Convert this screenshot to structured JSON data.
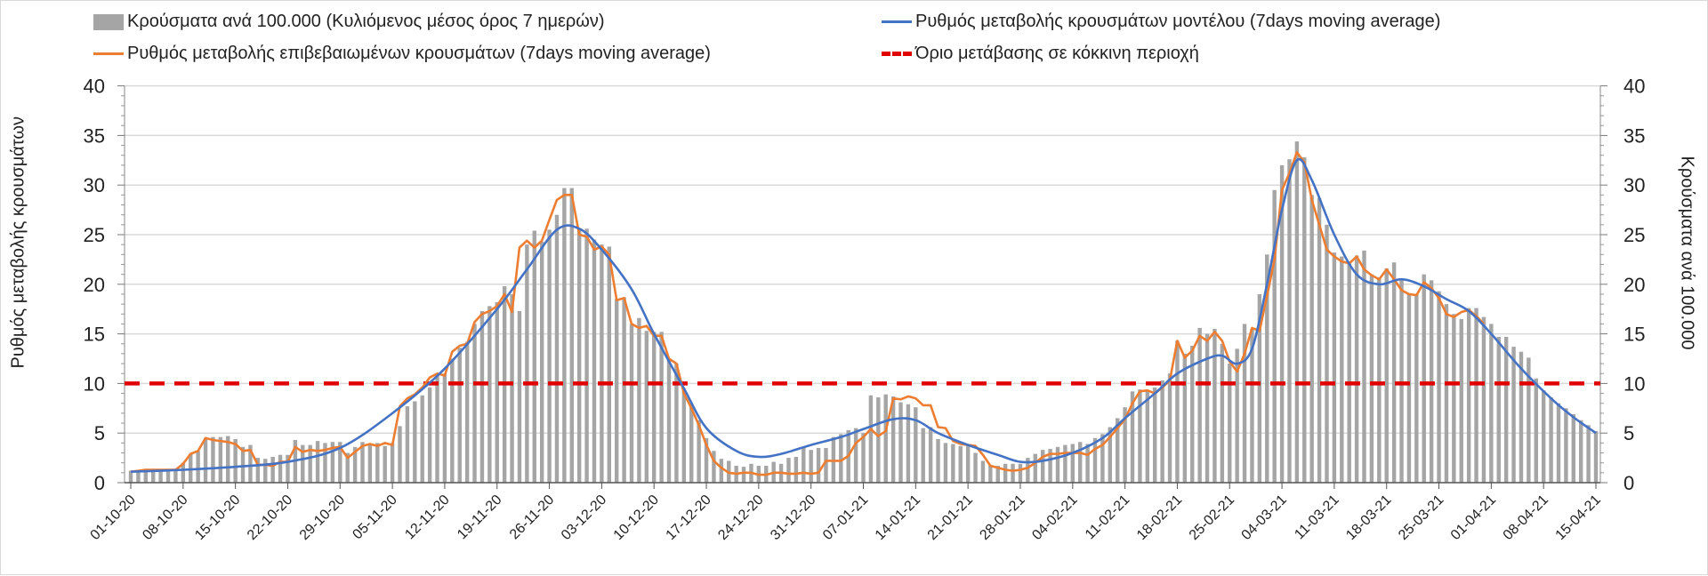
{
  "chart_data": {
    "type": "bar+line",
    "legend": {
      "bars": "Κρούσματα ανά 100.000 (Κυλιόμενος μέσος όρος 7 ημερών)",
      "model": "Ρυθμός μεταβολής κρουσμάτων μοντέλου (7days moving average)",
      "confirmed": "Ρυθμός μεταβολής επιβεβαιωμένων κρουσμάτων (7days moving average)",
      "threshold": "Όριο μετάβασης σε κόκκινη περιοχή"
    },
    "legend_position": "top",
    "ylabel_left": "Ρυθμός μεταβολής κρουσμάτων",
    "ylabel_right": "Κρούσματα ανά 100.000",
    "ylim": [
      0,
      40
    ],
    "yticks": [
      "0",
      "5",
      "10",
      "15",
      "20",
      "25",
      "30",
      "35",
      "40"
    ],
    "x_start": "01-10-20",
    "x_end": "15-04-21",
    "xtick_labels": [
      "01-10-20",
      "08-10-20",
      "15-10-20",
      "22-10-20",
      "29-10-20",
      "05-11-20",
      "12-11-20",
      "19-11-20",
      "26-11-20",
      "03-12-20",
      "10-12-20",
      "17-12-20",
      "24-12-20",
      "31-12-20",
      "07-01-21",
      "14-01-21",
      "21-01-21",
      "28-01-21",
      "04-02-21",
      "11-02-21",
      "18-02-21",
      "25-02-21",
      "04-03-21",
      "11-03-21",
      "18-03-21",
      "25-03-21",
      "01-04-21",
      "08-04-21",
      "15-04-21"
    ],
    "threshold": 10,
    "bars_daily": [
      1.2,
      1.3,
      1.4,
      1.4,
      1.3,
      1.3,
      1.4,
      2.0,
      2.9,
      3.2,
      4.5,
      4.6,
      4.6,
      4.7,
      4.4,
      3.6,
      3.8,
      2.5,
      2.4,
      2.6,
      2.8,
      2.8,
      4.3,
      3.8,
      3.8,
      4.2,
      4.0,
      4.1,
      4.1,
      3.0,
      3.6,
      4.1,
      3.8,
      4.0,
      3.7,
      4.0,
      5.7,
      7.7,
      8.2,
      8.8,
      9.6,
      10.8,
      11.0,
      12.5,
      13.6,
      14.2,
      16.0,
      17.3,
      17.8,
      18.2,
      19.8,
      19.0,
      17.3,
      24.0,
      25.4,
      24.3,
      25.5,
      27.0,
      29.7,
      29.7,
      25.5,
      25.6,
      24.5,
      24.0,
      23.8,
      18.5,
      18.7,
      16.0,
      16.6,
      15.3,
      15.2,
      15.2,
      12.5,
      12.0,
      9.5,
      8.0,
      6.3,
      4.5,
      3.2,
      2.4,
      2.2,
      1.7,
      1.6,
      1.9,
      1.7,
      1.7,
      2.1,
      1.9,
      2.5,
      2.6,
      3.5,
      3.3,
      3.5,
      3.5,
      4.6,
      4.9,
      5.3,
      5.5,
      5.0,
      8.8,
      8.6,
      8.9,
      8.7,
      8.1,
      7.9,
      7.6,
      5.5,
      5.6,
      4.4,
      4.0,
      3.9,
      3.7,
      3.8,
      3.0,
      2.2,
      1.8,
      1.7,
      1.9,
      1.9,
      1.9,
      2.5,
      2.9,
      3.3,
      3.4,
      3.6,
      3.8,
      3.9,
      4.1,
      3.9,
      4.5,
      4.9,
      5.6,
      6.5,
      7.6,
      9.2,
      9.4,
      9.2,
      9.6,
      10.3,
      11.0,
      14.3,
      13.0,
      13.8,
      15.6,
      15.0,
      15.5,
      14.0,
      12.0,
      13.5,
      16.0,
      15.5,
      19.0,
      23.0,
      29.5,
      32.0,
      32.6,
      34.4,
      32.8,
      29.0,
      28.7,
      26.0,
      23.2,
      22.8,
      22.3,
      22.9,
      23.4,
      21.0,
      20.7,
      21.6,
      22.2,
      20.5,
      19.0,
      19.0,
      21.0,
      20.4,
      19.3,
      18.0,
      17.0,
      16.5,
      17.6,
      17.6,
      16.7,
      16.0,
      14.7,
      14.7,
      13.7,
      13.2,
      12.6,
      10.5,
      9.3,
      8.6,
      8.0,
      7.5,
      6.9,
      6.3,
      5.8,
      5.2
    ],
    "confirmed_daily": [
      1.1,
      1.2,
      1.3,
      1.3,
      1.3,
      1.3,
      1.3,
      1.9,
      2.9,
      3.2,
      4.5,
      4.3,
      4.2,
      4.1,
      3.9,
      3.2,
      3.3,
      1.8,
      1.8,
      1.7,
      2.1,
      2.1,
      3.6,
      3.1,
      3.3,
      3.2,
      3.3,
      3.5,
      3.6,
      2.5,
      3.1,
      3.7,
      3.9,
      3.7,
      4.0,
      3.8,
      7.7,
      8.5,
      8.9,
      9.6,
      10.6,
      11.0,
      10.8,
      13.2,
      13.8,
      14.0,
      16.2,
      17.0,
      17.3,
      17.8,
      19.0,
      17.2,
      23.7,
      24.4,
      23.7,
      24.4,
      26.5,
      28.5,
      29.0,
      29.0,
      25.0,
      24.8,
      23.5,
      23.8,
      23.0,
      18.4,
      18.6,
      16.0,
      15.6,
      15.8,
      14.8,
      14.8,
      12.5,
      12.0,
      9.0,
      7.5,
      5.8,
      3.8,
      2.2,
      1.5,
      1.0,
      0.9,
      1.0,
      1.0,
      0.8,
      0.8,
      1.0,
      1.0,
      0.9,
      0.9,
      1.0,
      0.9,
      1.0,
      2.2,
      2.2,
      2.2,
      2.7,
      4.0,
      4.6,
      5.4,
      4.7,
      5.2,
      8.5,
      8.4,
      8.7,
      8.5,
      7.8,
      7.8,
      5.6,
      5.5,
      4.2,
      3.9,
      3.8,
      3.7,
      2.8,
      1.7,
      1.5,
      1.3,
      1.2,
      1.3,
      1.5,
      2.0,
      2.6,
      2.9,
      2.9,
      3.0,
      3.0,
      3.0,
      2.8,
      3.4,
      3.8,
      4.6,
      5.5,
      6.4,
      8.0,
      9.2,
      9.3,
      9.0,
      9.6,
      10.3,
      14.3,
      12.6,
      13.3,
      14.8,
      14.3,
      15.2,
      14.3,
      12.2,
      11.2,
      13.0,
      15.6,
      15.3,
      18.8,
      22.5,
      29.5,
      31.2,
      33.3,
      32.3,
      28.5,
      26.0,
      23.5,
      22.8,
      22.3,
      22.1,
      22.8,
      21.5,
      20.9,
      20.5,
      21.5,
      20.5,
      19.4,
      19.0,
      18.9,
      20.2,
      19.6,
      18.6,
      17.0,
      16.7,
      17.2,
      17.4,
      16.8,
      16.0
    ],
    "model_points": [
      [
        0,
        1.1
      ],
      [
        7,
        1.3
      ],
      [
        14,
        1.6
      ],
      [
        21,
        2.1
      ],
      [
        28,
        3.5
      ],
      [
        35,
        7.0
      ],
      [
        42,
        11.5
      ],
      [
        49,
        17.5
      ],
      [
        53,
        21.5
      ],
      [
        57,
        25.5
      ],
      [
        60,
        25.6
      ],
      [
        63,
        23.5
      ],
      [
        67,
        19.5
      ],
      [
        70,
        15.0
      ],
      [
        74,
        9.5
      ],
      [
        77,
        5.5
      ],
      [
        81,
        3.2
      ],
      [
        84,
        2.6
      ],
      [
        87,
        2.9
      ],
      [
        91,
        3.8
      ],
      [
        95,
        4.6
      ],
      [
        98,
        5.4
      ],
      [
        102,
        6.4
      ],
      [
        105,
        6.3
      ],
      [
        108,
        5.0
      ],
      [
        112,
        3.8
      ],
      [
        116,
        2.8
      ],
      [
        119,
        2.1
      ],
      [
        122,
        2.2
      ],
      [
        126,
        3.0
      ],
      [
        130,
        4.5
      ],
      [
        133,
        6.5
      ],
      [
        137,
        9.0
      ],
      [
        140,
        11.0
      ],
      [
        144,
        12.5
      ],
      [
        146,
        12.8
      ],
      [
        148,
        12.0
      ],
      [
        150,
        13.5
      ],
      [
        152,
        20.0
      ],
      [
        154,
        27.5
      ],
      [
        156,
        32.5
      ],
      [
        158,
        30.5
      ],
      [
        161,
        25.0
      ],
      [
        164,
        21.0
      ],
      [
        167,
        20.0
      ],
      [
        170,
        20.5
      ],
      [
        173,
        19.8
      ],
      [
        176,
        18.5
      ],
      [
        179,
        17.3
      ],
      [
        182,
        15.0
      ],
      [
        186,
        11.5
      ],
      [
        190,
        8.5
      ],
      [
        193,
        6.6
      ],
      [
        196,
        5.0
      ]
    ],
    "colors": {
      "bars": "#a5a5a5",
      "model": "#4472c4",
      "confirmed": "#ed7d31",
      "threshold": "#e00000",
      "grid": "#d9d9d9"
    }
  }
}
